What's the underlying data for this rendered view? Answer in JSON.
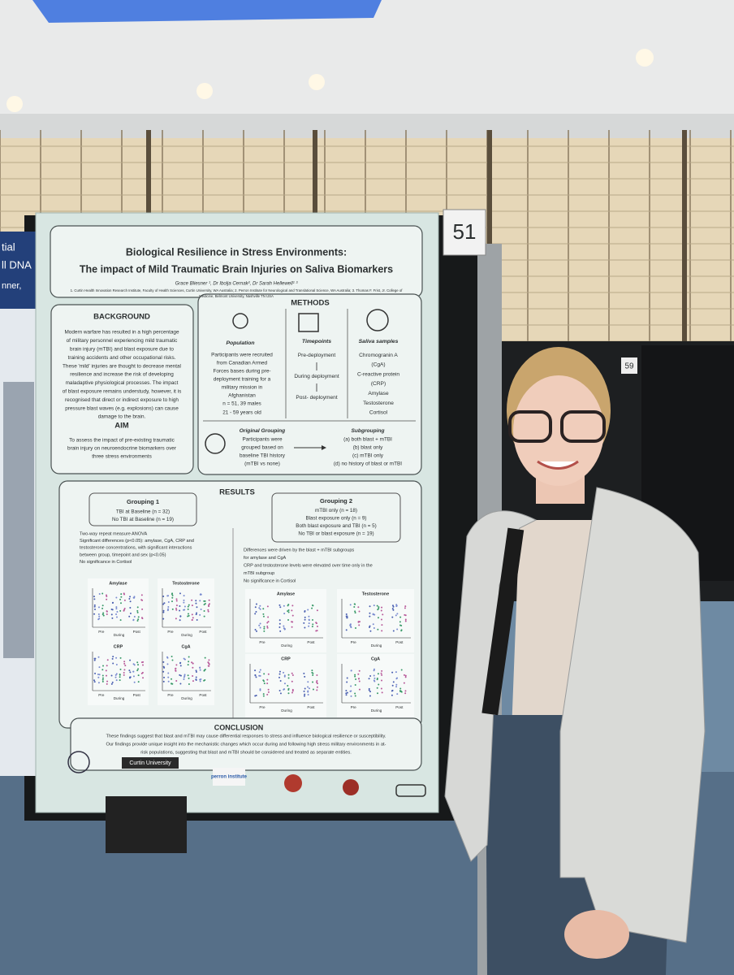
{
  "poster": {
    "title": [
      "Biological Resilience in Stress Environments:",
      "The impact of Mild Traumatic Brain Injuries on Saliva Biomarkers"
    ],
    "authors": "Grace Bliesner ¹, Dr Ibolja Cernak², Dr Sarah Hellewell¹ ³",
    "affiliations": [
      "1. Curtin Health Innovation Research Institute, Faculty of Health Sciences, Curtin University, WA Australia; 2. Perron Institute for Neurological and Translational Science, WA Australia; 3. Thomas F. Frist, Jr. College of",
      "Medicine, Belmont University, Nashville TN USA"
    ],
    "background": {
      "heading": "BACKGROUND",
      "lines": [
        "Modern warfare has resulted in a high percentage",
        "of military personnel experiencing mild traumatic",
        "brain injury (mTBI) and blast exposure due to",
        "training accidents and other occupational risks.",
        "These 'mild' injuries are thought to decrease mental",
        "resilience and increase the risk of developing",
        "maladaptive physiological processes. The impact",
        "of blast exposure remains understudy, however, it is",
        "recognised that direct or indirect exposure to high",
        "pressure blast waves (e.g. explosions) can cause",
        "damage to the brain."
      ]
    },
    "aim": {
      "heading": "AIM",
      "lines": [
        "To assess the impact of pre-existing traumatic",
        "brain injury on neuroendocrine biomarkers over",
        "three stress environments"
      ]
    },
    "methods": {
      "heading": "METHODS",
      "population": {
        "heading": "Population",
        "lines": [
          "Participants were recruited",
          "from Canadian Armed",
          "Forces bases during pre-",
          "deployment training for a",
          "military mission in",
          "Afghanistan"
        ],
        "stats": [
          "n = 51, 39 males",
          "21 - 59 years old"
        ]
      },
      "timepoints": {
        "heading": "Timepoints",
        "lines": [
          "Pre-deployment",
          "During deployment",
          "Post- deployment"
        ]
      },
      "saliva": {
        "heading": "Saliva samples",
        "lines": [
          "Chromogranin A",
          "(CgA)",
          "C-reactive protein",
          "(CRP)",
          "Amylase",
          "Testosterone",
          "Cortisol"
        ]
      },
      "original_grouping": {
        "heading": "Original Grouping",
        "lines": [
          "Participants were",
          "grouped based on",
          "baseline TBI history",
          "(mTBI vs none)"
        ]
      },
      "subgrouping": {
        "heading": "Subgrouping",
        "lines": [
          "(a) both blast + mTBI",
          "(b) blast only",
          "(c) mTBI only",
          "(d) no history of blast or mTBI"
        ]
      }
    },
    "results": {
      "heading": "RESULTS",
      "grouping1": {
        "heading": "Grouping 1",
        "lines": [
          "TBI at Baseline (n = 32)",
          "No TBI at Baseline (n = 19)"
        ],
        "bullets": [
          "Two-way repeat measure ANOVA",
          "Significant differences (p<0.05): amylase, CgA, CRP and",
          "testosterone concentrations, with significant interactions",
          "between group, timepoint and sex (p<0.05)",
          "No significance in Cortisol"
        ]
      },
      "grouping2": {
        "heading": "Grouping 2",
        "lines": [
          "mTBI only (n = 18)",
          "Blast exposure only (n = 9)",
          "Both blast exposure and TBI (n = 5)",
          "No TBI or blast exposure (n = 19)"
        ],
        "bullets": [
          "Differences were driven by the blast + mTBI subgroups",
          "for amylase and CgA",
          "CRP and testosterone levels were elevated over time only in the",
          "mTBI subgroup",
          "No significance in Cortisol"
        ]
      },
      "panels": [
        "Amylase",
        "Testosterone",
        "CRP",
        "CgA"
      ],
      "timepoints": [
        "Pre",
        "During",
        "Post"
      ]
    },
    "conclusion": {
      "heading": "CONCLUSION",
      "lines": [
        "These findings suggest that blast and mTBI may cause differential responses to stress and influence biological resilience or susceptibility.",
        "Our findings provide unique insight into the mechanistic changes which occur during and following high stress military environments in at-",
        "risk populations, suggesting that blast and mTBI should be considered and treated as separate entities."
      ]
    },
    "logos": [
      "Curtin University",
      "perron institute"
    ]
  },
  "scene": {
    "booth_numbers": [
      "51",
      "59"
    ],
    "neighbor_poster": [
      "tial",
      "ll DNA",
      "nner,"
    ]
  }
}
